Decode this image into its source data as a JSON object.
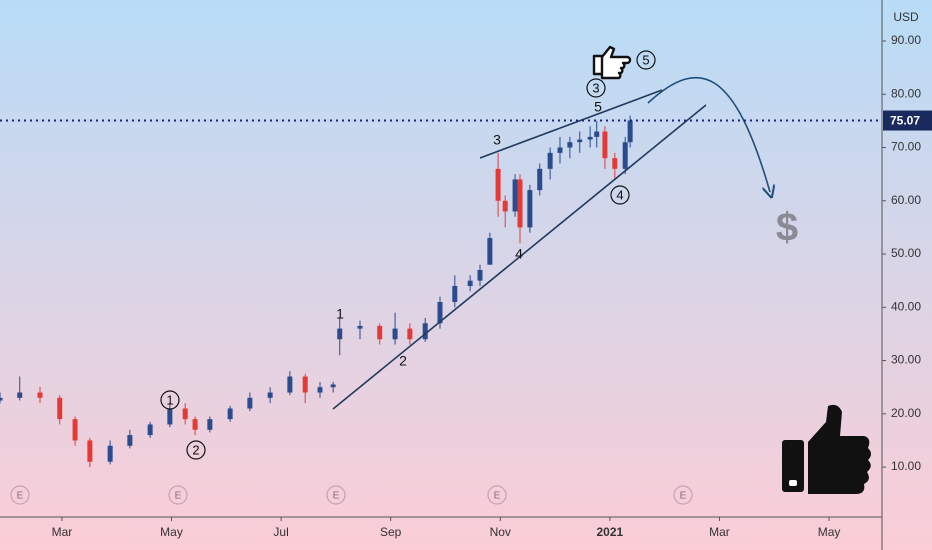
{
  "chart_data": {
    "type": "candlestick",
    "currency": "USD",
    "x": [
      1.87,
      2.23,
      2.6,
      2.96,
      3.24,
      3.51,
      3.88,
      4.24,
      4.61,
      4.97,
      5.25,
      5.43,
      5.7,
      6.07,
      6.43,
      6.8,
      7.16,
      7.44,
      7.71,
      7.95,
      8.07,
      8.44,
      8.8,
      9.08,
      9.35,
      9.63,
      9.9,
      10.17,
      10.45,
      10.63,
      10.81,
      10.96,
      11.09,
      11.27,
      11.36,
      11.54,
      11.72,
      11.91,
      12.09,
      12.27,
      12.45,
      12.64,
      12.76,
      12.91,
      13.09,
      13.28,
      13.37
    ],
    "open": [
      22.5,
      23,
      24,
      23,
      19,
      15,
      11,
      14,
      16,
      18,
      21,
      19,
      17,
      19,
      21,
      23,
      24,
      27,
      24,
      25,
      34,
      36,
      36.5,
      34,
      36,
      34,
      37,
      41,
      44,
      45,
      48,
      66,
      60,
      58,
      64,
      55,
      62,
      66,
      69,
      70,
      71,
      71.5,
      72,
      73,
      68,
      66,
      71
    ],
    "high": [
      24,
      27,
      25,
      23.5,
      19.5,
      15.5,
      15,
      17,
      18.5,
      22,
      22,
      19.5,
      19.5,
      21.5,
      24,
      25,
      28,
      27.5,
      26,
      26,
      38,
      37.5,
      37,
      39,
      37,
      38,
      42,
      46,
      46,
      48,
      54,
      69,
      61,
      65,
      65,
      63,
      67,
      70,
      72,
      72,
      73,
      74,
      75,
      74,
      69,
      72,
      76
    ],
    "low": [
      22,
      22.5,
      22,
      18,
      14,
      10,
      10.5,
      13.5,
      15.5,
      17.5,
      18,
      16,
      16.5,
      18.5,
      20.5,
      22,
      23.5,
      22,
      23,
      24,
      31,
      34,
      33,
      33,
      33,
      33.5,
      36,
      40,
      43,
      44,
      48,
      57,
      55,
      57,
      52,
      54,
      61,
      64,
      67,
      68,
      69,
      70,
      70,
      66,
      64,
      65,
      70
    ],
    "close": [
      23,
      24,
      23,
      19,
      15,
      11,
      14,
      16,
      18,
      21,
      19,
      17,
      19,
      21,
      23,
      24,
      27,
      24,
      25,
      25.5,
      36,
      36.5,
      34,
      36,
      34,
      37,
      41,
      44,
      45,
      47,
      53,
      60,
      58,
      64,
      55,
      62,
      66,
      69,
      70,
      71,
      71.5,
      72,
      73,
      68,
      66,
      71,
      75.07
    ],
    "up_color": "#2a4b8d",
    "down_color": "#e53935",
    "last_price": 75.07,
    "xlim": [
      1.87,
      17.93
    ],
    "ylim": [
      1.0,
      97.7
    ],
    "xticks": [
      {
        "value": 3,
        "label": "Mar"
      },
      {
        "value": 5,
        "label": "May"
      },
      {
        "value": 7,
        "label": "Jul"
      },
      {
        "value": 9,
        "label": "Sep"
      },
      {
        "value": 11,
        "label": "Nov"
      },
      {
        "value": 13,
        "label": "2021"
      },
      {
        "value": 15,
        "label": "Mar"
      },
      {
        "value": 17,
        "label": "May"
      }
    ],
    "yticks": [
      {
        "value": 10,
        "label": "10.00"
      },
      {
        "value": 20,
        "label": "20.00"
      },
      {
        "value": 30,
        "label": "30.00"
      },
      {
        "value": 40,
        "label": "40.00"
      },
      {
        "value": 50,
        "label": "50.00"
      },
      {
        "value": 60,
        "label": "60.00"
      },
      {
        "value": 70,
        "label": "70.00"
      },
      {
        "value": 80,
        "label": "80.00"
      },
      {
        "value": 90,
        "label": "90.00"
      }
    ],
    "annotations": {
      "wave_labels": [
        "1",
        "2",
        "3",
        "4",
        "5"
      ],
      "circled_labels": [
        "1",
        "2",
        "3",
        "4",
        "5"
      ],
      "currency_symbol": "$",
      "earnings_markers": [
        "E",
        "E",
        "E",
        "E",
        "E"
      ]
    }
  }
}
